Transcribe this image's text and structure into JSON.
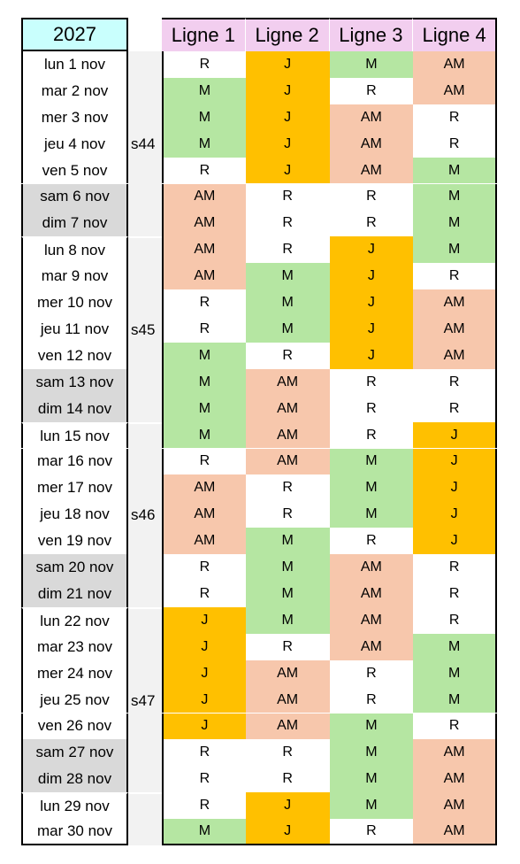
{
  "header": {
    "year": "2027",
    "lines": [
      "Ligne 1",
      "Ligne 2",
      "Ligne 3",
      "Ligne 4"
    ]
  },
  "cell_colors": {
    "R": "#ffffff",
    "M": "#b5e6a2",
    "J": "#ffc000",
    "AM": "#f7c7ac"
  },
  "weeks": [
    {
      "label": "s44",
      "days": [
        {
          "date": "lun 1 nov",
          "cells": [
            "R",
            "J",
            "M",
            "AM"
          ]
        },
        {
          "date": "mar 2 nov",
          "cells": [
            "M",
            "J",
            "R",
            "AM"
          ]
        },
        {
          "date": "mer 3 nov",
          "cells": [
            "M",
            "J",
            "AM",
            "R"
          ]
        },
        {
          "date": "jeu 4 nov",
          "cells": [
            "M",
            "J",
            "AM",
            "R"
          ]
        },
        {
          "date": "ven 5 nov",
          "cells": [
            "R",
            "J",
            "AM",
            "M"
          ]
        },
        {
          "date": "sam 6 nov",
          "cells": [
            "AM",
            "R",
            "R",
            "M"
          ]
        },
        {
          "date": "dim 7 nov",
          "cells": [
            "AM",
            "R",
            "R",
            "M"
          ]
        }
      ]
    },
    {
      "label": "s45",
      "days": [
        {
          "date": "lun 8 nov",
          "cells": [
            "AM",
            "R",
            "J",
            "M"
          ]
        },
        {
          "date": "mar 9 nov",
          "cells": [
            "AM",
            "M",
            "J",
            "R"
          ]
        },
        {
          "date": "mer 10 nov",
          "cells": [
            "R",
            "M",
            "J",
            "AM"
          ]
        },
        {
          "date": "jeu 11 nov",
          "cells": [
            "R",
            "M",
            "J",
            "AM"
          ]
        },
        {
          "date": "ven 12 nov",
          "cells": [
            "M",
            "R",
            "J",
            "AM"
          ]
        },
        {
          "date": "sam 13 nov",
          "cells": [
            "M",
            "AM",
            "R",
            "R"
          ]
        },
        {
          "date": "dim 14 nov",
          "cells": [
            "M",
            "AM",
            "R",
            "R"
          ]
        }
      ]
    },
    {
      "label": "s46",
      "days": [
        {
          "date": "lun 15 nov",
          "cells": [
            "M",
            "AM",
            "R",
            "J"
          ]
        },
        {
          "date": "mar 16 nov",
          "cells": [
            "R",
            "AM",
            "M",
            "J"
          ]
        },
        {
          "date": "mer 17 nov",
          "cells": [
            "AM",
            "R",
            "M",
            "J"
          ]
        },
        {
          "date": "jeu 18 nov",
          "cells": [
            "AM",
            "R",
            "M",
            "J"
          ]
        },
        {
          "date": "ven 19 nov",
          "cells": [
            "AM",
            "M",
            "R",
            "J"
          ]
        },
        {
          "date": "sam 20 nov",
          "cells": [
            "R",
            "M",
            "AM",
            "R"
          ]
        },
        {
          "date": "dim 21 nov",
          "cells": [
            "R",
            "M",
            "AM",
            "R"
          ]
        }
      ]
    },
    {
      "label": "s47",
      "days": [
        {
          "date": "lun 22 nov",
          "cells": [
            "J",
            "M",
            "AM",
            "R"
          ]
        },
        {
          "date": "mar 23 nov",
          "cells": [
            "J",
            "R",
            "AM",
            "M"
          ]
        },
        {
          "date": "mer 24 nov",
          "cells": [
            "J",
            "AM",
            "R",
            "M"
          ]
        },
        {
          "date": "jeu 25 nov",
          "cells": [
            "J",
            "AM",
            "R",
            "M"
          ]
        },
        {
          "date": "ven 26 nov",
          "cells": [
            "J",
            "AM",
            "M",
            "R"
          ]
        },
        {
          "date": "sam 27 nov",
          "cells": [
            "R",
            "R",
            "M",
            "AM"
          ]
        },
        {
          "date": "dim 28 nov",
          "cells": [
            "R",
            "R",
            "M",
            "AM"
          ]
        }
      ]
    },
    {
      "label": null,
      "days": [
        {
          "date": "lun 29 nov",
          "cells": [
            "R",
            "J",
            "M",
            "AM"
          ]
        },
        {
          "date": "mar 30 nov",
          "cells": [
            "M",
            "J",
            "R",
            "AM"
          ]
        }
      ]
    }
  ]
}
